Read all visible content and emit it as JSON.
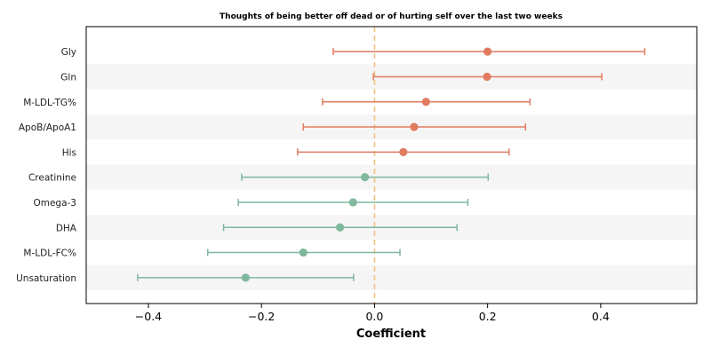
{
  "chart_data": {
    "type": "forest",
    "title": "Thoughts of being better off dead or of hurting self over the last two weeks",
    "xlabel": "Coefficient",
    "ylabel": "",
    "xlim": [
      -0.51,
      0.57
    ],
    "xticks": [
      -0.4,
      -0.2,
      0.0,
      0.2,
      0.4
    ],
    "xtick_labels": [
      "−0.4",
      "−0.2",
      "0.0",
      "0.2",
      "0.4"
    ],
    "reference_line": 0.0,
    "grid": false,
    "row_banding": true,
    "colors": {
      "positive": "#E07B5F",
      "negative": "#7FB89D",
      "reference": "#F2C27F",
      "band": "#F5F5F5"
    },
    "rows": [
      {
        "label": "Gly",
        "coef": 0.2,
        "lower": -0.073,
        "upper": 0.478
      },
      {
        "label": "Gln",
        "coef": 0.199,
        "lower": -0.002,
        "upper": 0.402
      },
      {
        "label": "M-LDL-TG%",
        "coef": 0.091,
        "lower": -0.092,
        "upper": 0.275
      },
      {
        "label": "ApoB/ApoA1",
        "coef": 0.07,
        "lower": -0.126,
        "upper": 0.267
      },
      {
        "label": "His",
        "coef": 0.051,
        "lower": -0.136,
        "upper": 0.238
      },
      {
        "label": "Creatinine",
        "coef": -0.017,
        "lower": -0.235,
        "upper": 0.201
      },
      {
        "label": "Omega-3",
        "coef": -0.038,
        "lower": -0.241,
        "upper": 0.165
      },
      {
        "label": "DHA",
        "coef": -0.061,
        "lower": -0.267,
        "upper": 0.146
      },
      {
        "label": "M-LDL-FC%",
        "coef": -0.126,
        "lower": -0.295,
        "upper": 0.045
      },
      {
        "label": "Unsaturation",
        "coef": -0.228,
        "lower": -0.419,
        "upper": -0.037
      }
    ]
  }
}
